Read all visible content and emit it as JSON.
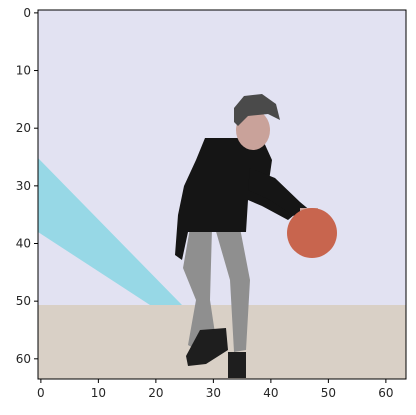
{
  "chart_data": {
    "type": "heatmap",
    "title": "",
    "xlabel": "",
    "ylabel": "",
    "image_size": [
      64,
      64
    ],
    "xlim": [
      -0.5,
      63.5
    ],
    "ylim": [
      63.5,
      -0.5
    ],
    "x_ticks": [
      0,
      10,
      20,
      30,
      40,
      50,
      60
    ],
    "y_ticks": [
      0,
      10,
      20,
      30,
      40,
      50,
      60
    ],
    "x_tick_labels": [
      "0",
      "10",
      "20",
      "30",
      "40",
      "50",
      "60"
    ],
    "y_tick_labels": [
      "0",
      "10",
      "20",
      "30",
      "40",
      "50",
      "60"
    ],
    "grid": false,
    "legend": "none",
    "colors": {
      "wall": "#e2e2f2",
      "floor": "#d9d0c6",
      "stripe": "#97d8e6",
      "hair": "#4a4a4a",
      "face": "#c9a29a",
      "shirt": "#151515",
      "pants": "#8f8f8f",
      "shoes": "#1e1e1e",
      "ball": "#c8654e",
      "axis": "#000000"
    }
  }
}
